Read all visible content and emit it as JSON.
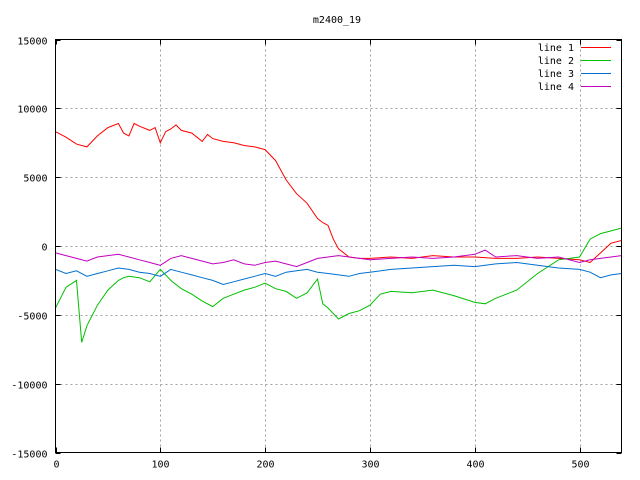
{
  "chart_data": {
    "type": "line",
    "title": "m2400_19",
    "xlabel": "",
    "ylabel": "",
    "xlim": [
      0,
      540
    ],
    "ylim": [
      -15000,
      15000
    ],
    "x_ticks": [
      0,
      100,
      200,
      300,
      400,
      500
    ],
    "y_ticks": [
      -15000,
      -10000,
      -5000,
      0,
      5000,
      10000,
      15000
    ],
    "grid": true,
    "legend_position": "top-right",
    "series": [
      {
        "name": "line 1",
        "color": "#ff0000",
        "x": [
          0,
          10,
          20,
          30,
          40,
          50,
          60,
          65,
          70,
          75,
          80,
          90,
          95,
          100,
          105,
          110,
          115,
          120,
          130,
          140,
          145,
          150,
          160,
          170,
          180,
          190,
          200,
          210,
          220,
          230,
          240,
          250,
          255,
          260,
          265,
          270,
          280,
          290,
          300,
          320,
          340,
          360,
          380,
          400,
          420,
          440,
          460,
          480,
          500,
          510,
          520,
          530,
          540
        ],
        "y": [
          8300,
          7900,
          7400,
          7200,
          8000,
          8600,
          8900,
          8200,
          8000,
          8900,
          8700,
          8400,
          8600,
          7500,
          8300,
          8500,
          8800,
          8400,
          8200,
          7600,
          8100,
          7800,
          7600,
          7500,
          7300,
          7200,
          7000,
          6200,
          4800,
          3800,
          3100,
          2000,
          1700,
          1500,
          500,
          -200,
          -800,
          -900,
          -900,
          -800,
          -900,
          -700,
          -800,
          -800,
          -900,
          -900,
          -800,
          -900,
          -1000,
          -1200,
          -500,
          200,
          400
        ]
      },
      {
        "name": "line 2",
        "color": "#00c000",
        "x": [
          0,
          10,
          20,
          25,
          30,
          40,
          50,
          60,
          65,
          70,
          80,
          90,
          100,
          110,
          120,
          130,
          140,
          150,
          160,
          170,
          180,
          190,
          200,
          210,
          220,
          230,
          240,
          250,
          255,
          260,
          270,
          280,
          290,
          300,
          310,
          320,
          340,
          360,
          380,
          400,
          410,
          420,
          440,
          460,
          480,
          500,
          510,
          520,
          530,
          540
        ],
        "y": [
          -4500,
          -3000,
          -2500,
          -7000,
          -5800,
          -4300,
          -3200,
          -2500,
          -2300,
          -2200,
          -2300,
          -2600,
          -1700,
          -2500,
          -3100,
          -3500,
          -4000,
          -4400,
          -3800,
          -3500,
          -3200,
          -3000,
          -2700,
          -3100,
          -3300,
          -3800,
          -3400,
          -2400,
          -4200,
          -4500,
          -5300,
          -4900,
          -4700,
          -4300,
          -3500,
          -3300,
          -3400,
          -3200,
          -3600,
          -4100,
          -4200,
          -3800,
          -3200,
          -2000,
          -1000,
          -800,
          500,
          900,
          1100,
          1300
        ]
      },
      {
        "name": "line 3",
        "color": "#0070d0",
        "x": [
          0,
          10,
          20,
          30,
          40,
          50,
          60,
          70,
          80,
          90,
          100,
          110,
          120,
          130,
          140,
          150,
          160,
          170,
          180,
          190,
          200,
          210,
          220,
          230,
          240,
          250,
          260,
          270,
          280,
          290,
          300,
          320,
          340,
          360,
          380,
          400,
          420,
          440,
          460,
          480,
          500,
          510,
          520,
          530,
          540
        ],
        "y": [
          -1700,
          -2000,
          -1800,
          -2200,
          -2000,
          -1800,
          -1600,
          -1700,
          -1900,
          -2000,
          -2200,
          -1700,
          -1900,
          -2100,
          -2300,
          -2500,
          -2800,
          -2600,
          -2400,
          -2200,
          -2000,
          -2200,
          -1900,
          -1800,
          -1700,
          -1900,
          -2000,
          -2100,
          -2200,
          -2000,
          -1900,
          -1700,
          -1600,
          -1500,
          -1400,
          -1500,
          -1300,
          -1200,
          -1400,
          -1600,
          -1700,
          -1900,
          -2300,
          -2100,
          -2000
        ]
      },
      {
        "name": "line 4",
        "color": "#c000c0",
        "x": [
          0,
          10,
          20,
          30,
          40,
          50,
          60,
          70,
          80,
          90,
          100,
          110,
          120,
          130,
          140,
          150,
          160,
          170,
          180,
          190,
          200,
          210,
          220,
          230,
          240,
          250,
          260,
          270,
          280,
          290,
          300,
          320,
          340,
          360,
          380,
          400,
          410,
          420,
          440,
          460,
          480,
          500,
          510,
          520,
          530,
          540
        ],
        "y": [
          -500,
          -700,
          -900,
          -1100,
          -800,
          -700,
          -600,
          -800,
          -1000,
          -1200,
          -1400,
          -900,
          -700,
          -900,
          -1100,
          -1300,
          -1200,
          -1000,
          -1300,
          -1400,
          -1200,
          -1100,
          -1300,
          -1500,
          -1200,
          -900,
          -800,
          -700,
          -800,
          -900,
          -1000,
          -900,
          -800,
          -900,
          -800,
          -600,
          -300,
          -800,
          -700,
          -900,
          -800,
          -1200,
          -1000,
          -900,
          -800,
          -700
        ]
      }
    ]
  }
}
